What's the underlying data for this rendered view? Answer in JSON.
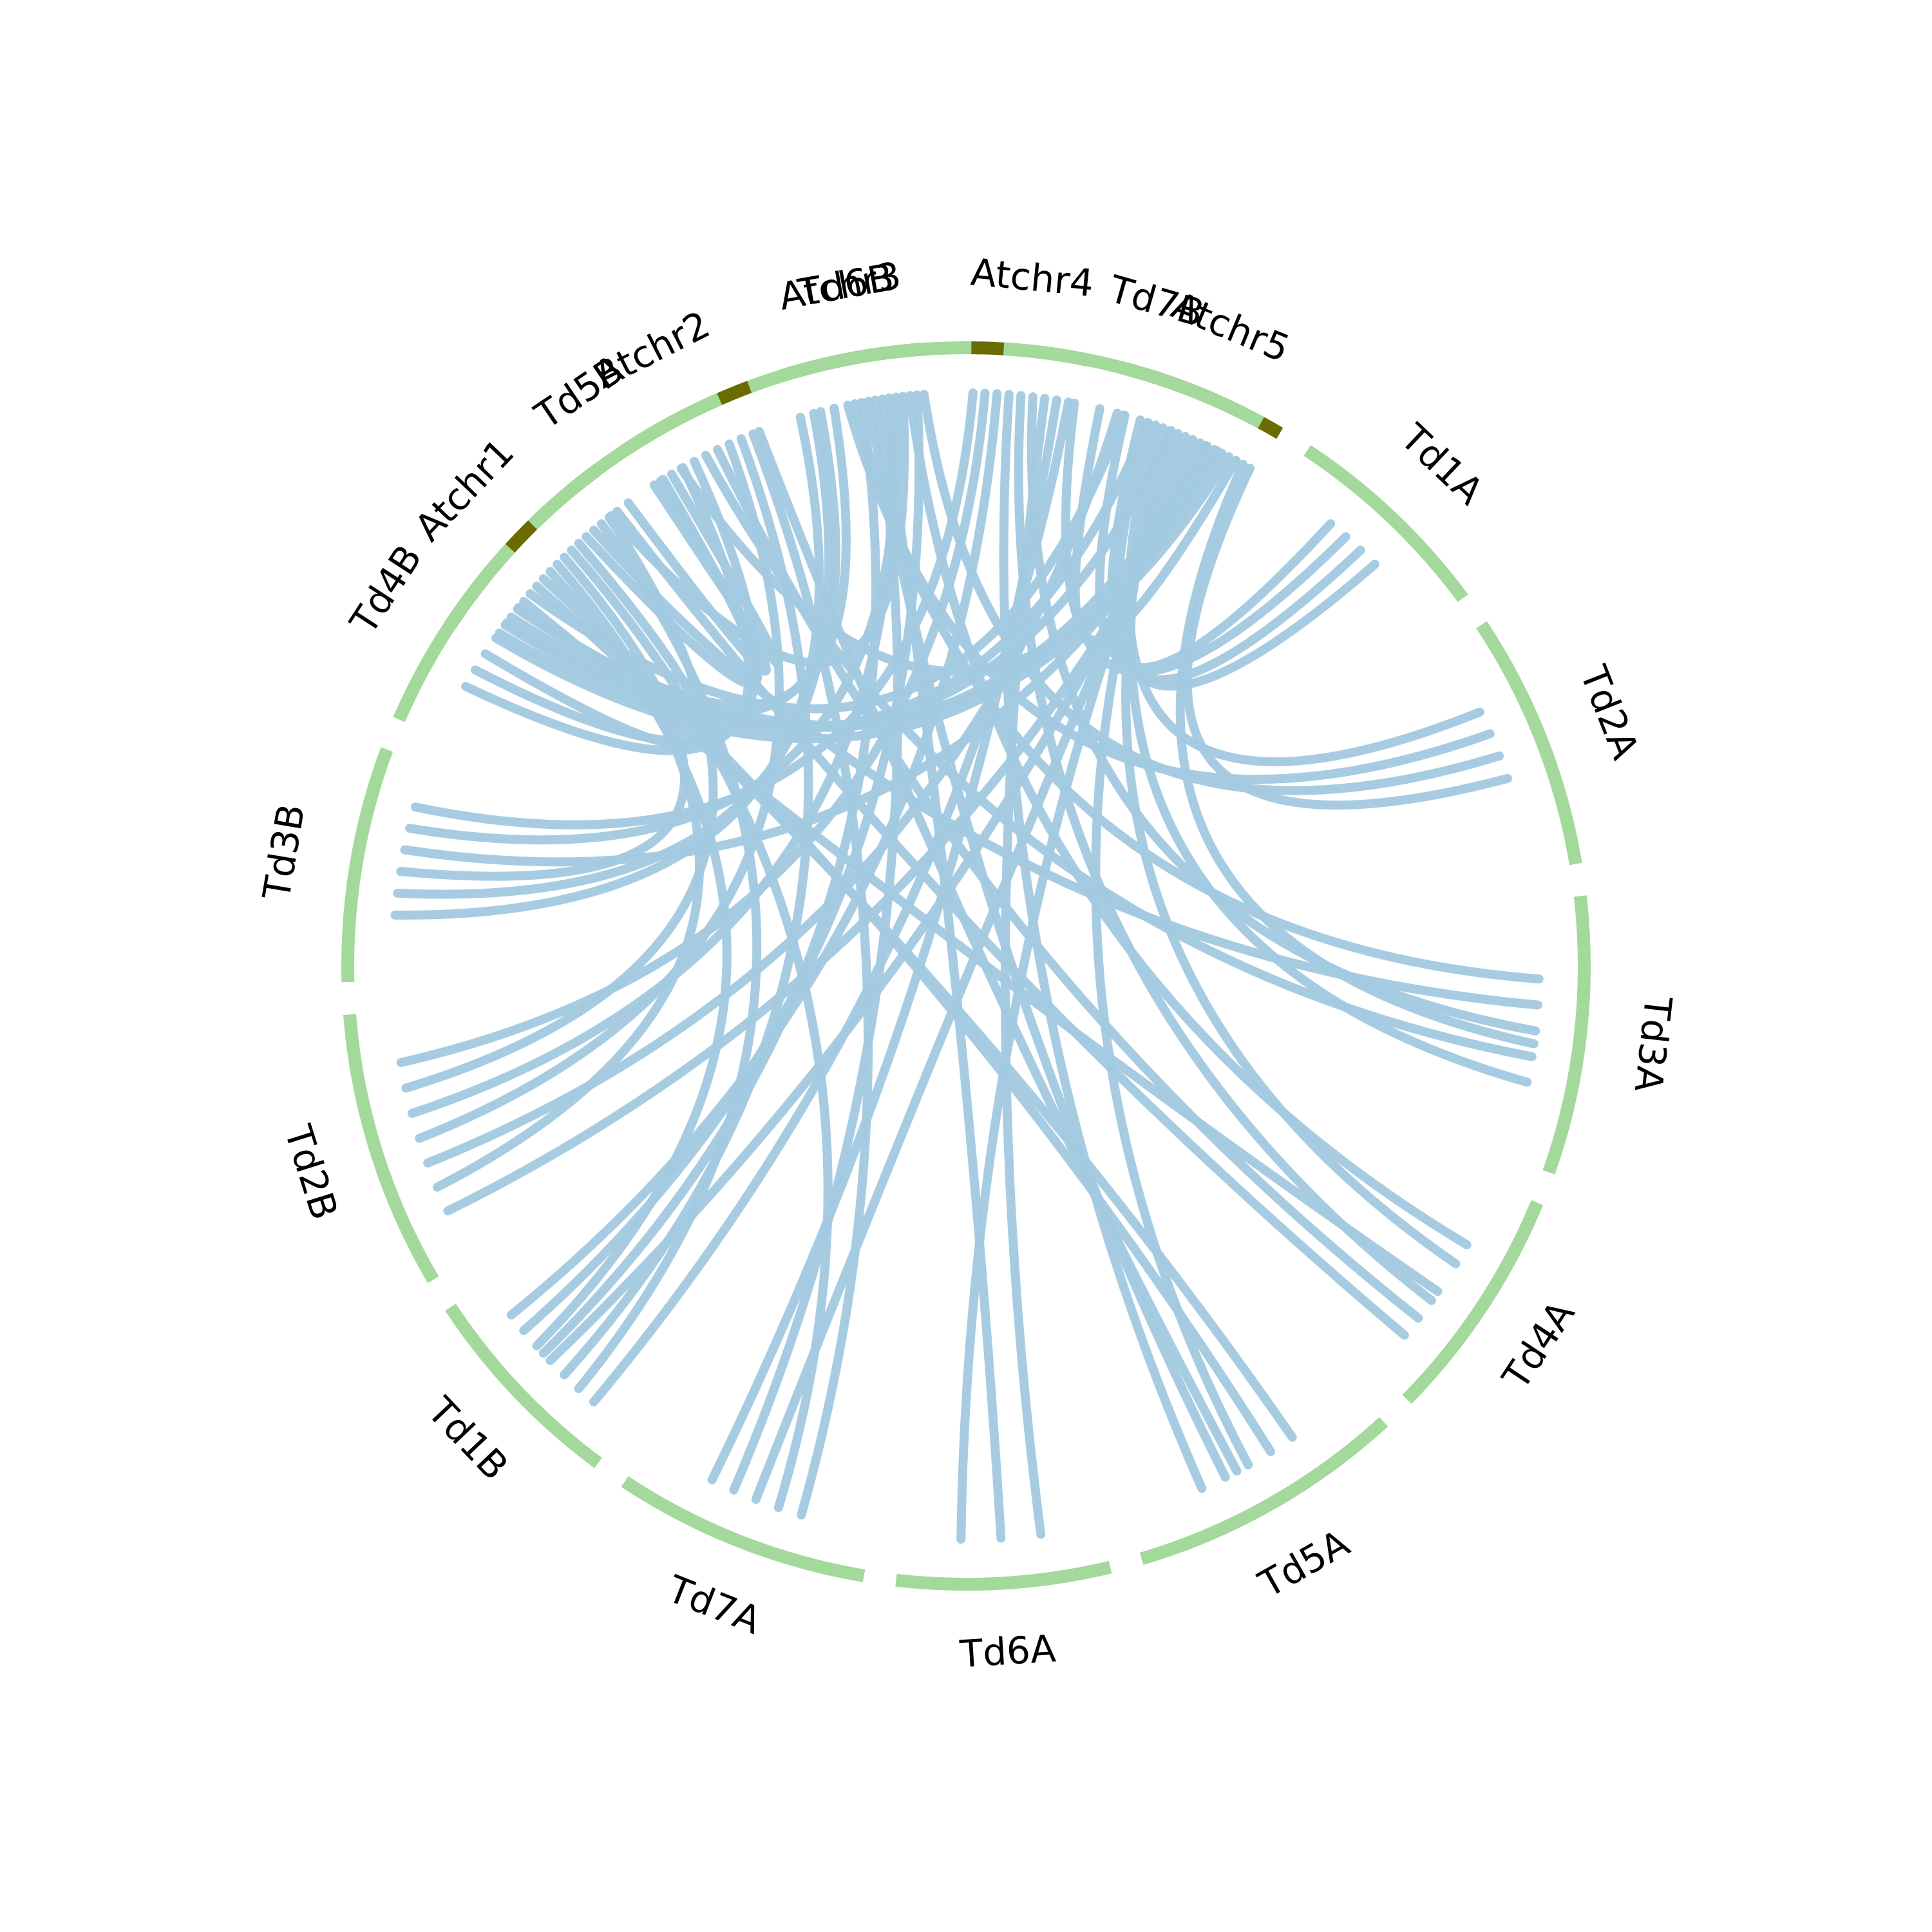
{
  "chart_data": {
    "type": "chord",
    "title": "",
    "colors": {
      "arabidopsis": "#6b6b00",
      "wheat": "#a3d99b",
      "link": "#a2c9e0"
    },
    "chromosomes": [
      {
        "id": "Atchr1",
        "label": "Atchr1",
        "group": "arabidopsis",
        "start_deg": 213.5,
        "end_deg": 233.5
      },
      {
        "id": "Atchr2",
        "label": "Atchr2",
        "group": "arabidopsis",
        "start_deg": 236.5,
        "end_deg": 249.5
      },
      {
        "id": "Atchr3",
        "label": "Atchr3",
        "group": "arabidopsis",
        "start_deg": 252.5,
        "end_deg": 266.5
      },
      {
        "id": "Atchr4",
        "label": "Atchr4",
        "group": "arabidopsis",
        "start_deg": 269.5,
        "end_deg": 281.5
      },
      {
        "id": "Atchr5",
        "label": "Atchr5",
        "group": "arabidopsis",
        "start_deg": 284.5,
        "end_deg": 300.5
      },
      {
        "id": "Td1A",
        "label": "Td1A",
        "group": "wheat",
        "start_deg": 303.5,
        "end_deg": 323.5
      },
      {
        "id": "Td2A",
        "label": "Td2A",
        "group": "wheat",
        "start_deg": 326.5,
        "end_deg": 350.5
      },
      {
        "id": "Td3A",
        "label": "Td3A",
        "group": "wheat",
        "start_deg": 353.5,
        "end_deg": 19.5
      },
      {
        "id": "Td4A",
        "label": "Td4A",
        "group": "wheat",
        "start_deg": 22.5,
        "end_deg": 44.5
      },
      {
        "id": "Td5A",
        "label": "Td5A",
        "group": "wheat",
        "start_deg": 47.5,
        "end_deg": 73.5
      },
      {
        "id": "Td6A",
        "label": "Td6A",
        "group": "wheat",
        "start_deg": 76.5,
        "end_deg": 96.5
      },
      {
        "id": "Td7A",
        "label": "Td7A",
        "group": "wheat",
        "start_deg": 99.5,
        "end_deg": 123.5
      },
      {
        "id": "Td1B",
        "label": "Td1B",
        "group": "wheat",
        "start_deg": 126.5,
        "end_deg": 146.5
      },
      {
        "id": "Td2B",
        "label": "Td2B",
        "group": "wheat",
        "start_deg": 149.5,
        "end_deg": 175.5
      },
      {
        "id": "Td3B",
        "label": "Td3B",
        "group": "wheat",
        "start_deg": 178.5,
        "end_deg": 200.5
      },
      {
        "id": "Td4B",
        "label": "Td4B",
        "group": "wheat",
        "start_deg": 203.5,
        "end_deg": 222.5
      },
      {
        "id": "Td5B",
        "label": "Td5B",
        "group": "wheat",
        "start_deg": 225.5,
        "end_deg": 246.5
      },
      {
        "id": "Td6B",
        "label": "Td6B",
        "group": "wheat",
        "start_deg": 249.5,
        "end_deg": 270.5
      },
      {
        "id": "Td7B",
        "label": "Td7B",
        "group": "wheat",
        "start_deg": 273.5,
        "end_deg": 298.5
      }
    ],
    "links": [
      [
        "Atchr1",
        0.1,
        "Td7B",
        0.6
      ],
      [
        "Atchr1",
        0.15,
        "Td7B",
        0.7
      ],
      [
        "Atchr1",
        0.2,
        "Td7B",
        0.85
      ],
      [
        "Atchr1",
        0.25,
        "Td7B",
        0.9
      ],
      [
        "Atchr1",
        0.3,
        "Td4A",
        0.55
      ],
      [
        "Atchr1",
        0.4,
        "Td5A",
        0.3
      ],
      [
        "Atchr1",
        0.45,
        "Td5A",
        0.4
      ],
      [
        "Atchr1",
        0.5,
        "Td1B",
        0.6
      ],
      [
        "Atchr1",
        0.55,
        "Td2B",
        0.3
      ],
      [
        "Atchr1",
        0.6,
        "Td3B",
        0.5
      ],
      [
        "Atchr1",
        0.65,
        "Td7A",
        0.4
      ],
      [
        "Atchr1",
        0.7,
        "Td4B",
        0.5
      ],
      [
        "Atchr1",
        0.75,
        "Td5B",
        0.6
      ],
      [
        "Atchr1",
        0.8,
        "Td3A",
        0.4
      ],
      [
        "Atchr1",
        0.85,
        "Td1B",
        0.3
      ],
      [
        "Atchr1",
        0.9,
        "Td2B",
        0.7
      ],
      [
        "Atchr2",
        0.1,
        "Td5B",
        0.4
      ],
      [
        "Atchr2",
        0.2,
        "Td5B",
        0.55
      ],
      [
        "Atchr2",
        0.3,
        "Td4B",
        0.3
      ],
      [
        "Atchr2",
        0.4,
        "Td4B",
        0.4
      ],
      [
        "Atchr2",
        0.5,
        "Td3A",
        0.6
      ],
      [
        "Atchr2",
        0.6,
        "Td4A",
        0.7
      ],
      [
        "Atchr2",
        0.7,
        "Td2B",
        0.5
      ],
      [
        "Atchr2",
        0.8,
        "Td1B",
        0.4
      ],
      [
        "Atchr2",
        0.9,
        "Td7A",
        0.3
      ],
      [
        "Atchr3",
        0.05,
        "Td3B",
        0.3
      ],
      [
        "Atchr3",
        0.15,
        "Td3B",
        0.4
      ],
      [
        "Atchr3",
        0.2,
        "Td4B",
        0.7
      ],
      [
        "Atchr3",
        0.3,
        "Td4B",
        0.8
      ],
      [
        "Atchr3",
        0.4,
        "Td2A",
        0.4
      ],
      [
        "Atchr3",
        0.45,
        "Td3A",
        0.3
      ],
      [
        "Atchr3",
        0.5,
        "Td1B",
        0.55
      ],
      [
        "Atchr3",
        0.55,
        "Td5A",
        0.6
      ],
      [
        "Atchr3",
        0.6,
        "Td7A",
        0.6
      ],
      [
        "Atchr3",
        0.65,
        "Td6A",
        0.5
      ],
      [
        "Atchr3",
        0.7,
        "Td2B",
        0.6
      ],
      [
        "Atchr3",
        0.75,
        "Td3B",
        0.7
      ],
      [
        "Atchr3",
        0.8,
        "Td5B",
        0.3
      ],
      [
        "Atchr3",
        0.85,
        "Td4A",
        0.3
      ],
      [
        "Atchr3",
        0.9,
        "Td1B",
        0.7
      ],
      [
        "Atchr3",
        0.95,
        "Td2A",
        0.5
      ],
      [
        "Atchr4",
        0.1,
        "Td3B",
        0.8
      ],
      [
        "Atchr4",
        0.2,
        "Td2B",
        0.8
      ],
      [
        "Atchr4",
        0.3,
        "Td1B",
        0.8
      ],
      [
        "Atchr4",
        0.4,
        "Td5A",
        0.7
      ],
      [
        "Atchr4",
        0.5,
        "Td4A",
        0.6
      ],
      [
        "Atchr4",
        0.6,
        "Td3A",
        0.5
      ],
      [
        "Atchr4",
        0.7,
        "Td6A",
        0.3
      ],
      [
        "Atchr4",
        0.8,
        "Td7A",
        0.7
      ],
      [
        "Atchr4",
        0.9,
        "Td1B",
        0.2
      ],
      [
        "Atchr5",
        0.05,
        "Td2B",
        0.4
      ],
      [
        "Atchr5",
        0.1,
        "Td1A",
        0.3
      ],
      [
        "Atchr5",
        0.2,
        "Td1A",
        0.5
      ],
      [
        "Atchr5",
        0.25,
        "Td1A",
        0.6
      ],
      [
        "Atchr5",
        0.3,
        "Td2A",
        0.3
      ],
      [
        "Atchr5",
        0.35,
        "Td3A",
        0.7
      ],
      [
        "Atchr5",
        0.4,
        "Td4A",
        0.4
      ],
      [
        "Atchr5",
        0.45,
        "Td5A",
        0.5
      ],
      [
        "Atchr5",
        0.5,
        "Td6A",
        0.7
      ],
      [
        "Atchr5",
        0.55,
        "Td7A",
        0.5
      ],
      [
        "Atchr5",
        0.6,
        "Td1B",
        0.5
      ],
      [
        "Atchr5",
        0.65,
        "Td2B",
        0.2
      ],
      [
        "Atchr5",
        0.7,
        "Td3B",
        0.6
      ],
      [
        "Atchr5",
        0.75,
        "Td4B",
        0.6
      ],
      [
        "Atchr5",
        0.8,
        "Td5B",
        0.7
      ],
      [
        "Atchr5",
        0.85,
        "Td7B",
        0.4
      ],
      [
        "Atchr5",
        0.9,
        "Td3A",
        0.55
      ],
      [
        "Atchr5",
        0.95,
        "Td2A",
        0.6
      ],
      [
        "Atchr4",
        0.95,
        "Td1A",
        0.4
      ],
      [
        "Atchr2",
        0.95,
        "Td5A",
        0.55
      ],
      [
        "Atchr1",
        0.35,
        "Td7B",
        0.5
      ],
      [
        "Atchr1",
        0.95,
        "Td4A",
        0.8
      ]
    ]
  }
}
